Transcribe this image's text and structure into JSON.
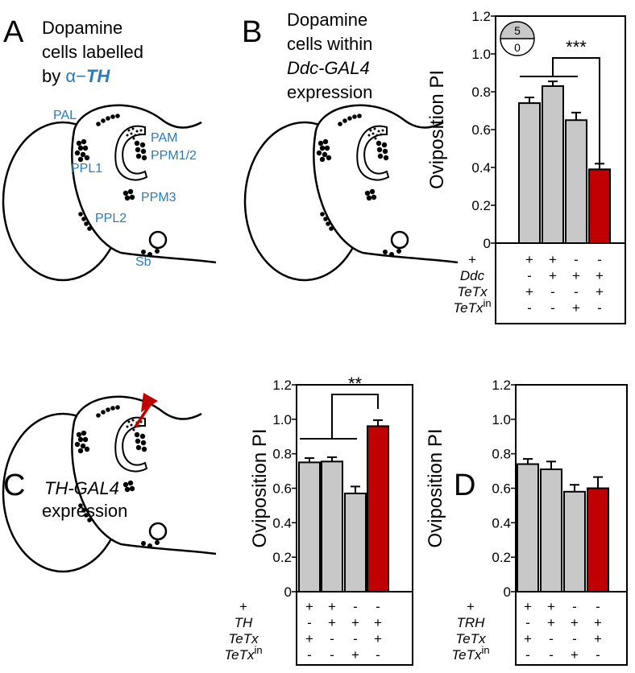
{
  "panels": {
    "A": {
      "letter": "A",
      "title_lines": [
        "Dopamine",
        "cells labelled"
      ],
      "title_by": "by",
      "title_alpha": "α−",
      "title_th": "TH",
      "labels": [
        "PAL",
        "PAM",
        "PPM1/2",
        "PPL1",
        "PPM3",
        "PPL2",
        "Sb"
      ]
    },
    "B": {
      "letter": "B",
      "title_lines": [
        "Dopamine",
        "cells within",
        "Ddc-GAL4",
        "expression"
      ]
    },
    "C": {
      "letter": "C",
      "title_lines": [
        "TH-GAL4",
        "expression"
      ]
    },
    "D": {
      "letter": "D"
    }
  },
  "chart_data": [
    {
      "type": "bar",
      "ylabel": "Oviposition PI",
      "ylim": [
        0,
        1.2
      ],
      "yticks": [
        0,
        0.2,
        0.4,
        0.6,
        0.8,
        {
          "value": 1,
          "label": "1.0"
        },
        1.2
      ],
      "values": [
        0.74,
        0.83,
        0.65,
        0.39
      ],
      "errors": [
        0.03,
        0.025,
        0.04,
        0.03
      ],
      "colors": [
        "#c8c8c8",
        "#c8c8c8",
        "#c8c8c8",
        "#c00000"
      ],
      "significance": "***",
      "inset": {
        "top": "5",
        "bottom": "0"
      },
      "genotype_rows": [
        {
          "label": "+",
          "marks": [
            "+",
            "+",
            "-",
            "-"
          ]
        },
        {
          "label": "Ddc",
          "marks": [
            "-",
            "+",
            "+",
            "+"
          ]
        },
        {
          "label": "TeTx",
          "marks": [
            "+",
            "-",
            "-",
            "+"
          ]
        },
        {
          "label": "TeTx",
          "sup": "in",
          "marks": [
            "-",
            "-",
            "+",
            "-"
          ]
        }
      ]
    },
    {
      "type": "bar",
      "ylabel": "Oviposition PI",
      "ylim": [
        0,
        1.2
      ],
      "yticks": [
        0,
        0.2,
        0.4,
        0.6,
        0.8,
        {
          "value": 1,
          "label": "1.0"
        },
        1.2
      ],
      "values": [
        0.75,
        0.755,
        0.57,
        0.96
      ],
      "errors": [
        0.025,
        0.025,
        0.04,
        0.035
      ],
      "colors": [
        "#c8c8c8",
        "#c8c8c8",
        "#c8c8c8",
        "#c00000"
      ],
      "significance": "**",
      "genotype_rows": [
        {
          "label": "+",
          "marks": [
            "+",
            "+",
            "-",
            "-"
          ]
        },
        {
          "label": "TH",
          "marks": [
            "-",
            "+",
            "+",
            "+"
          ]
        },
        {
          "label": "TeTx",
          "marks": [
            "+",
            "-",
            "-",
            "+"
          ]
        },
        {
          "label": "TeTx",
          "sup": "in",
          "marks": [
            "-",
            "-",
            "+",
            "-"
          ]
        }
      ]
    },
    {
      "type": "bar",
      "ylabel": "Oviposition PI",
      "ylim": [
        0,
        1.2
      ],
      "yticks": [
        0,
        0.2,
        0.4,
        0.6,
        0.8,
        {
          "value": 1,
          "label": "1.0"
        },
        1.2
      ],
      "values": [
        0.74,
        0.71,
        0.58,
        0.6
      ],
      "errors": [
        0.03,
        0.045,
        0.04,
        0.065
      ],
      "colors": [
        "#c8c8c8",
        "#c8c8c8",
        "#c8c8c8",
        "#c00000"
      ],
      "genotype_rows": [
        {
          "label": "+",
          "marks": [
            "+",
            "+",
            "-",
            "-"
          ]
        },
        {
          "label": "TRH",
          "marks": [
            "-",
            "+",
            "+",
            "+"
          ]
        },
        {
          "label": "TeTx",
          "marks": [
            "+",
            "-",
            "-",
            "+"
          ]
        },
        {
          "label": "TeTx",
          "sup": "in",
          "marks": [
            "-",
            "-",
            "+",
            "-"
          ]
        }
      ]
    }
  ]
}
